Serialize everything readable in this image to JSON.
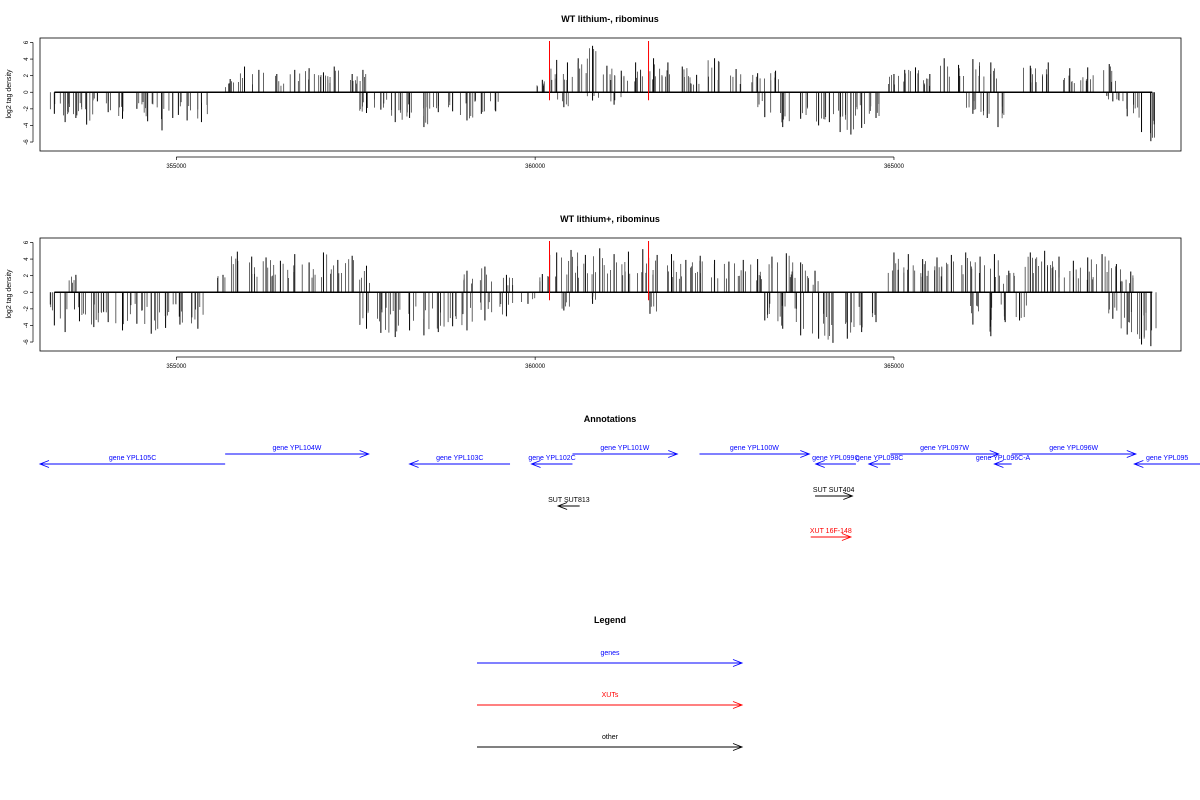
{
  "chart_data": [
    {
      "type": "bar",
      "title": "WT lithium-, ribominus",
      "ylabel": "log2 tag density",
      "xlim": [
        353100,
        369000
      ],
      "ylim": [
        -6.6,
        6.3
      ],
      "xticks": [
        355000,
        360000,
        365000
      ],
      "xtick_labels": [
        "355000",
        "360000",
        "365000"
      ],
      "yticks": [
        6,
        4,
        2,
        0,
        -2,
        -4,
        -6
      ],
      "ytick_labels": [
        "6",
        "4",
        "2",
        "0",
        "-2",
        "-4",
        "-6"
      ],
      "baseline_range": [
        353300,
        368600
      ],
      "markers": [
        {
          "x": 360200,
          "color": "#ff0000"
        },
        {
          "x": 361580,
          "color": "#ff0000"
        }
      ],
      "series": [
        {
          "strand": "minus",
          "values": [
            [
              353300,
              -2.6
            ],
            [
              353450,
              -3.6
            ],
            [
              353600,
              -3.1
            ],
            [
              353750,
              -3.9
            ],
            [
              353900,
              -1.1
            ],
            [
              354050,
              -2.4
            ],
            [
              354250,
              -3.2
            ],
            [
              354450,
              -2.0
            ],
            [
              354600,
              -3.5
            ],
            [
              354800,
              -4.6
            ],
            [
              354950,
              -3.1
            ],
            [
              355150,
              -3.4
            ],
            [
              355350,
              -3.6
            ],
            [
              357650,
              -2.5
            ],
            [
              357850,
              -2.1
            ],
            [
              358050,
              -3.6
            ],
            [
              358250,
              -3.1
            ],
            [
              358450,
              -4.2
            ],
            [
              358650,
              -2.4
            ],
            [
              358850,
              -2.3
            ],
            [
              359050,
              -3.4
            ],
            [
              359250,
              -2.6
            ],
            [
              359450,
              -2.3
            ],
            [
              360400,
              -1.8
            ],
            [
              360800,
              -1.0
            ],
            [
              361100,
              -1.5
            ],
            [
              363200,
              -3.0
            ],
            [
              363450,
              -4.2
            ],
            [
              363700,
              -3.2
            ],
            [
              363950,
              -4.0
            ],
            [
              364100,
              -3.6
            ],
            [
              364250,
              -4.8
            ],
            [
              364400,
              -5.1
            ],
            [
              364550,
              -4.3
            ],
            [
              364750,
              -3.1
            ],
            [
              366100,
              -2.6
            ],
            [
              366300,
              -3.1
            ],
            [
              366450,
              -4.2
            ],
            [
              368050,
              -1.1
            ],
            [
              368250,
              -2.9
            ],
            [
              368450,
              -4.8
            ],
            [
              368580,
              -5.9
            ]
          ]
        },
        {
          "strand": "plus",
          "values": [
            [
              355750,
              1.6
            ],
            [
              355950,
              3.1
            ],
            [
              356150,
              2.7
            ],
            [
              356400,
              2.2
            ],
            [
              356650,
              2.7
            ],
            [
              356850,
              2.9
            ],
            [
              357050,
              2.4
            ],
            [
              357200,
              3.1
            ],
            [
              357450,
              2.2
            ],
            [
              357600,
              2.7
            ],
            [
              360100,
              1.5
            ],
            [
              360300,
              3.9
            ],
            [
              360450,
              3.6
            ],
            [
              360600,
              4.1
            ],
            [
              360800,
              5.6
            ],
            [
              361000,
              3.2
            ],
            [
              361200,
              2.6
            ],
            [
              361400,
              3.6
            ],
            [
              361650,
              4.1
            ],
            [
              361850,
              3.6
            ],
            [
              362050,
              3.1
            ],
            [
              362250,
              2.1
            ],
            [
              362500,
              4.1
            ],
            [
              362800,
              2.8
            ],
            [
              363100,
              2.3
            ],
            [
              363350,
              2.6
            ],
            [
              365000,
              2.2
            ],
            [
              365150,
              2.7
            ],
            [
              365300,
              3.0
            ],
            [
              365500,
              2.2
            ],
            [
              365700,
              4.1
            ],
            [
              365900,
              3.3
            ],
            [
              366100,
              4.0
            ],
            [
              366350,
              3.6
            ],
            [
              366900,
              3.2
            ],
            [
              367150,
              3.6
            ],
            [
              367450,
              2.9
            ],
            [
              367700,
              3.0
            ],
            [
              368000,
              3.4
            ]
          ]
        }
      ]
    },
    {
      "type": "bar",
      "title": "WT lithium+, ribominus",
      "ylabel": "log2 tag density",
      "xlim": [
        353100,
        369000
      ],
      "ylim": [
        -6.6,
        6.3
      ],
      "xticks": [
        355000,
        360000,
        365000
      ],
      "xtick_labels": [
        "355000",
        "360000",
        "365000"
      ],
      "yticks": [
        6,
        4,
        2,
        0,
        -2,
        -4,
        -6
      ],
      "ytick_labels": [
        "6",
        "4",
        "2",
        "0",
        "-2",
        "-4",
        "-6"
      ],
      "baseline_range": [
        353300,
        368600
      ],
      "markers": [
        {
          "x": 360200,
          "color": "#ff0000"
        },
        {
          "x": 361580,
          "color": "#ff0000"
        }
      ],
      "series": [
        {
          "strand": "minus",
          "values": [
            [
              353300,
              -4.0
            ],
            [
              353450,
              -4.8
            ],
            [
              353650,
              -3.5
            ],
            [
              353850,
              -4.2
            ],
            [
              354050,
              -3.6
            ],
            [
              354250,
              -4.6
            ],
            [
              354450,
              -3.8
            ],
            [
              354650,
              -5.0
            ],
            [
              354850,
              -4.3
            ],
            [
              355050,
              -3.9
            ],
            [
              355300,
              -4.4
            ],
            [
              357650,
              -4.4
            ],
            [
              357850,
              -4.9
            ],
            [
              358050,
              -5.4
            ],
            [
              358250,
              -4.6
            ],
            [
              358450,
              -5.2
            ],
            [
              358650,
              -4.8
            ],
            [
              358850,
              -4.1
            ],
            [
              359050,
              -4.6
            ],
            [
              359300,
              -3.4
            ],
            [
              359600,
              -2.9
            ],
            [
              359900,
              -1.4
            ],
            [
              360400,
              -2.2
            ],
            [
              360800,
              -1.4
            ],
            [
              361600,
              -2.6
            ],
            [
              363200,
              -3.4
            ],
            [
              363450,
              -4.4
            ],
            [
              363700,
              -5.2
            ],
            [
              363950,
              -5.6
            ],
            [
              364150,
              -6.1
            ],
            [
              364350,
              -5.6
            ],
            [
              364550,
              -4.8
            ],
            [
              364750,
              -3.6
            ],
            [
              366100,
              -3.9
            ],
            [
              366350,
              -5.3
            ],
            [
              366550,
              -3.6
            ],
            [
              366750,
              -3.4
            ],
            [
              368050,
              -3.2
            ],
            [
              368250,
              -5.1
            ],
            [
              368450,
              -6.3
            ],
            [
              368580,
              -6.5
            ]
          ]
        },
        {
          "strand": "plus",
          "values": [
            [
              353600,
              2.1
            ],
            [
              355650,
              2.1
            ],
            [
              355850,
              4.9
            ],
            [
              356050,
              4.3
            ],
            [
              356250,
              4.2
            ],
            [
              356450,
              3.8
            ],
            [
              356650,
              4.6
            ],
            [
              356850,
              3.6
            ],
            [
              357050,
              4.8
            ],
            [
              357250,
              3.9
            ],
            [
              357450,
              4.4
            ],
            [
              357650,
              3.2
            ],
            [
              359050,
              2.6
            ],
            [
              359300,
              3.1
            ],
            [
              359600,
              2.1
            ],
            [
              360100,
              2.2
            ],
            [
              360300,
              4.8
            ],
            [
              360500,
              5.1
            ],
            [
              360700,
              4.5
            ],
            [
              360900,
              5.3
            ],
            [
              361100,
              4.6
            ],
            [
              361300,
              4.9
            ],
            [
              361500,
              5.2
            ],
            [
              361700,
              4.5
            ],
            [
              361900,
              4.6
            ],
            [
              362100,
              3.9
            ],
            [
              362300,
              4.4
            ],
            [
              362500,
              3.9
            ],
            [
              362700,
              3.7
            ],
            [
              362900,
              3.9
            ],
            [
              363100,
              4.0
            ],
            [
              363300,
              4.3
            ],
            [
              363500,
              4.7
            ],
            [
              363700,
              3.6
            ],
            [
              363900,
              2.6
            ],
            [
              365000,
              4.8
            ],
            [
              365200,
              4.6
            ],
            [
              365400,
              4.0
            ],
            [
              365600,
              4.2
            ],
            [
              365800,
              4.5
            ],
            [
              366000,
              4.8
            ],
            [
              366200,
              4.3
            ],
            [
              366400,
              4.6
            ],
            [
              366600,
              2.6
            ],
            [
              366900,
              4.8
            ],
            [
              367100,
              5.0
            ],
            [
              367300,
              4.3
            ],
            [
              367500,
              3.8
            ],
            [
              367700,
              4.2
            ],
            [
              367900,
              4.6
            ],
            [
              368100,
              3.4
            ],
            [
              368300,
              2.5
            ]
          ]
        }
      ]
    }
  ],
  "annotations": {
    "title": "Annotations",
    "features": [
      {
        "label": "gene YPL105C",
        "start": 353100,
        "end": 355680,
        "dir": "left",
        "row": 1,
        "color": "#0000ff"
      },
      {
        "label": "gene YPL104W",
        "start": 355680,
        "end": 357680,
        "dir": "right",
        "row": 0,
        "color": "#0000ff"
      },
      {
        "label": "gene YPL103C",
        "start": 358250,
        "end": 359650,
        "dir": "left",
        "row": 1,
        "color": "#0000ff"
      },
      {
        "label": "gene YPL102C",
        "start": 359950,
        "end": 360520,
        "dir": "left",
        "row": 1,
        "color": "#0000ff"
      },
      {
        "label": "gene YPL101W",
        "start": 360520,
        "end": 361980,
        "dir": "right",
        "row": 0,
        "color": "#0000ff"
      },
      {
        "label": "gene YPL100W",
        "start": 362290,
        "end": 363820,
        "dir": "right",
        "row": 0,
        "color": "#0000ff"
      },
      {
        "label": "gene YPL099C",
        "start": 363910,
        "end": 364470,
        "dir": "left",
        "row": 1,
        "color": "#0000ff"
      },
      {
        "label": "gene YPL098C",
        "start": 364650,
        "end": 364950,
        "dir": "left",
        "row": 1,
        "color": "#0000ff"
      },
      {
        "label": "gene YPL097W",
        "start": 364950,
        "end": 366460,
        "dir": "right",
        "row": 0,
        "color": "#0000ff"
      },
      {
        "label": "gene YPL096C-A",
        "start": 366400,
        "end": 366640,
        "dir": "left",
        "row": 1,
        "color": "#0000ff"
      },
      {
        "label": "gene YPL096W",
        "start": 366640,
        "end": 368370,
        "dir": "right",
        "row": 0,
        "color": "#0000ff"
      },
      {
        "label": "gene YPL095",
        "start": 368350,
        "end": 369400,
        "dir": "left",
        "row": 1,
        "color": "#0000ff"
      },
      {
        "label": "SUT SUT813",
        "start": 360320,
        "end": 360620,
        "dir": "left",
        "row": 3,
        "color": "#000000"
      },
      {
        "label": "SUT SUT404",
        "start": 363900,
        "end": 364420,
        "dir": "right",
        "row": 2,
        "color": "#000000"
      },
      {
        "label": "XUT 16F-148",
        "start": 363840,
        "end": 364400,
        "dir": "right",
        "row": 4,
        "color": "#ff0000"
      }
    ]
  },
  "legend": {
    "title": "Legend",
    "items": [
      {
        "label": "genes",
        "color": "#0000ff"
      },
      {
        "label": "XUTs",
        "color": "#ff0000"
      },
      {
        "label": "other",
        "color": "#000000"
      }
    ]
  }
}
